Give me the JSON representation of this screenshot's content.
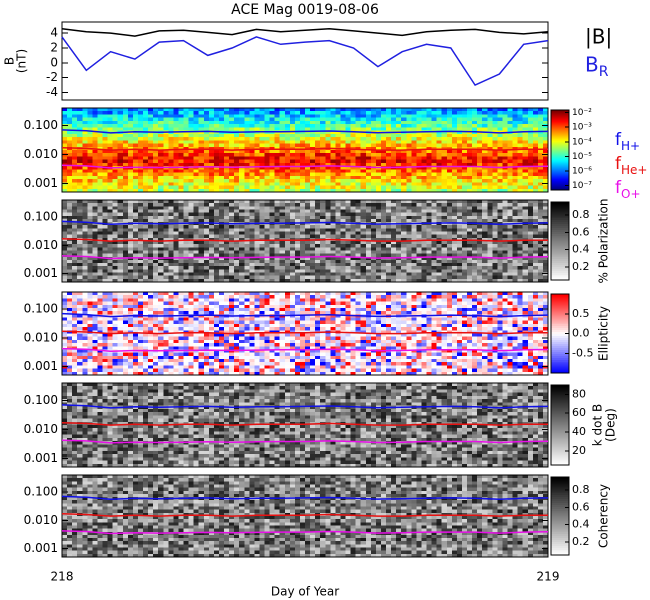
{
  "chart_data": [
    {
      "type": "line",
      "title": "ACE Mag 0019-08-06",
      "ylabel": [
        "B",
        "(nT)"
      ],
      "x": [
        218,
        218.05,
        218.1,
        218.15,
        218.2,
        218.25,
        218.3,
        218.35,
        218.4,
        218.45,
        218.5,
        218.55,
        218.6,
        218.65,
        218.7,
        218.75,
        218.8,
        218.85,
        218.9,
        218.95,
        219
      ],
      "xlim": [
        218,
        219
      ],
      "ylim": [
        -5,
        5.5
      ],
      "yticks": [
        -4,
        -2,
        0,
        2,
        4
      ],
      "series": [
        {
          "name": "|B|",
          "color": "#000000",
          "values": [
            4.6,
            4.2,
            4.0,
            3.6,
            4.3,
            4.4,
            4.1,
            3.8,
            4.5,
            4.2,
            4.4,
            4.6,
            4.3,
            4.0,
            3.7,
            4.2,
            4.4,
            4.5,
            4.1,
            3.9,
            4.2
          ]
        },
        {
          "name": "B",
          "subscript": "R",
          "color": "#2020e0",
          "values": [
            3.5,
            -1.0,
            1.5,
            0.5,
            2.8,
            3.0,
            1.0,
            2.0,
            3.5,
            2.5,
            2.8,
            3.0,
            2.0,
            -0.5,
            1.5,
            2.5,
            2.0,
            -3.0,
            -1.5,
            2.5,
            3.0
          ]
        }
      ]
    },
    {
      "type": "spectrogram",
      "colormap": "jet",
      "log": true,
      "clog": true,
      "x": [
        218,
        218.05,
        218.1,
        218.15,
        218.2,
        218.25,
        218.3,
        218.35,
        218.4,
        218.45,
        218.5,
        218.55,
        218.6,
        218.65,
        218.7,
        218.75,
        218.8,
        218.85,
        218.9,
        218.95,
        219
      ],
      "xlim": [
        218,
        219
      ],
      "ylim": [
        0.0005,
        0.4
      ],
      "yticks": [
        0.001,
        {
          "value": 0.01,
          "label": "0.010"
        },
        {
          "value": 0.1,
          "label": "0.100"
        }
      ],
      "clim": [
        5e-08,
        0.015
      ],
      "cticks": [
        {
          "value": 0.01,
          "label": "10⁻²"
        },
        {
          "value": 0.001,
          "label": "10⁻³"
        },
        {
          "value": 0.0001,
          "label": "10⁻⁴"
        },
        {
          "value": 1e-05,
          "label": "10⁻⁵"
        },
        {
          "value": 1e-06,
          "label": "10⁻⁶"
        },
        {
          "value": 1e-07,
          "label": "10⁻⁷"
        }
      ],
      "series": [
        {
          "name": "f",
          "subscript": "H+",
          "color": "#1010e8",
          "values": [
            0.07,
            0.065,
            0.055,
            0.06,
            0.058,
            0.06,
            0.062,
            0.058,
            0.06,
            0.06,
            0.062,
            0.064,
            0.06,
            0.056,
            0.058,
            0.06,
            0.062,
            0.06,
            0.055,
            0.06,
            0.062
          ]
        },
        {
          "name": "f",
          "subscript": "He+",
          "color": "#e81010",
          "values": [
            0.017,
            0.016,
            0.014,
            0.015,
            0.014,
            0.015,
            0.015,
            0.014,
            0.015,
            0.015,
            0.015,
            0.016,
            0.015,
            0.014,
            0.014,
            0.015,
            0.015,
            0.015,
            0.014,
            0.015,
            0.015
          ]
        },
        {
          "name": "f",
          "subscript": "O+",
          "color": "#e810e8",
          "values": [
            0.0042,
            0.004,
            0.0034,
            0.0036,
            0.0035,
            0.0036,
            0.0037,
            0.0036,
            0.0037,
            0.0038,
            0.0038,
            0.004,
            0.0038,
            0.0035,
            0.0036,
            0.0038,
            0.0038,
            0.0038,
            0.0035,
            0.0038,
            0.0039
          ]
        }
      ]
    },
    {
      "type": "spectrogram",
      "colormap": "gray",
      "log": true,
      "colorbar_label": "% Polarization",
      "x": [
        218,
        218.05,
        218.1,
        218.15,
        218.2,
        218.25,
        218.3,
        218.35,
        218.4,
        218.45,
        218.5,
        218.55,
        218.6,
        218.65,
        218.7,
        218.75,
        218.8,
        218.85,
        218.9,
        218.95,
        219
      ],
      "xlim": [
        218,
        219
      ],
      "ylim": [
        0.0005,
        0.4
      ],
      "yticks": [
        0.001,
        {
          "value": 0.01,
          "label": "0.010"
        },
        {
          "value": 0.1,
          "label": "0.100"
        }
      ],
      "clim": [
        0.05,
        0.95
      ],
      "cticks": [
        0.2,
        0.4,
        0.6,
        0.8
      ],
      "series": [
        {
          "color": "#1010e8",
          "values": [
            0.07,
            0.065,
            0.055,
            0.06,
            0.058,
            0.06,
            0.062,
            0.058,
            0.06,
            0.06,
            0.062,
            0.064,
            0.06,
            0.056,
            0.058,
            0.06,
            0.062,
            0.06,
            0.055,
            0.06,
            0.062
          ]
        },
        {
          "color": "#e81010",
          "values": [
            0.017,
            0.016,
            0.014,
            0.015,
            0.014,
            0.015,
            0.015,
            0.014,
            0.015,
            0.015,
            0.015,
            0.016,
            0.015,
            0.014,
            0.014,
            0.015,
            0.015,
            0.015,
            0.014,
            0.015,
            0.015
          ]
        },
        {
          "color": "#e810e8",
          "values": [
            0.0042,
            0.004,
            0.0034,
            0.0036,
            0.0035,
            0.0036,
            0.0037,
            0.0036,
            0.0037,
            0.0038,
            0.0038,
            0.004,
            0.0038,
            0.0035,
            0.0036,
            0.0038,
            0.0038,
            0.0038,
            0.0035,
            0.0038,
            0.0039
          ]
        }
      ]
    },
    {
      "type": "spectrogram",
      "colormap": "bwr",
      "log": true,
      "colorbar_label": "Ellipticity",
      "x": [
        218,
        218.05,
        218.1,
        218.15,
        218.2,
        218.25,
        218.3,
        218.35,
        218.4,
        218.45,
        218.5,
        218.55,
        218.6,
        218.65,
        218.7,
        218.75,
        218.8,
        218.85,
        218.9,
        218.95,
        219
      ],
      "xlim": [
        218,
        219
      ],
      "ylim": [
        0.0005,
        0.4
      ],
      "yticks": [
        0.001,
        {
          "value": 0.01,
          "label": "0.010"
        },
        {
          "value": 0.1,
          "label": "0.100"
        }
      ],
      "clim": [
        -1,
        1
      ],
      "cticks": [
        -0.5,
        {
          "value": 0,
          "label": "0.0"
        },
        0.5
      ],
      "series": [
        {
          "color": "#1010e8",
          "values": [
            0.07,
            0.065,
            0.055,
            0.06,
            0.058,
            0.06,
            0.062,
            0.058,
            0.06,
            0.06,
            0.062,
            0.064,
            0.06,
            0.056,
            0.058,
            0.06,
            0.062,
            0.06,
            0.055,
            0.06,
            0.062
          ]
        },
        {
          "color": "#e81010",
          "values": [
            0.017,
            0.016,
            0.014,
            0.015,
            0.014,
            0.015,
            0.015,
            0.014,
            0.015,
            0.015,
            0.015,
            0.016,
            0.015,
            0.014,
            0.014,
            0.015,
            0.015,
            0.015,
            0.014,
            0.015,
            0.015
          ]
        },
        {
          "color": "#e810e8",
          "values": [
            0.0042,
            0.004,
            0.0034,
            0.0036,
            0.0035,
            0.0036,
            0.0037,
            0.0036,
            0.0037,
            0.0038,
            0.0038,
            0.004,
            0.0038,
            0.0035,
            0.0036,
            0.0038,
            0.0038,
            0.0038,
            0.0035,
            0.0038,
            0.0039
          ]
        }
      ]
    },
    {
      "type": "spectrogram",
      "colormap": "gray",
      "log": true,
      "colorbar_label": [
        "k dot B",
        "(Deg)"
      ],
      "x": [
        218,
        218.05,
        218.1,
        218.15,
        218.2,
        218.25,
        218.3,
        218.35,
        218.4,
        218.45,
        218.5,
        218.55,
        218.6,
        218.65,
        218.7,
        218.75,
        218.8,
        218.85,
        218.9,
        218.95,
        219
      ],
      "xlim": [
        218,
        219
      ],
      "ylim": [
        0.0005,
        0.4
      ],
      "yticks": [
        0.001,
        {
          "value": 0.01,
          "label": "0.010"
        },
        {
          "value": 0.1,
          "label": "0.100"
        }
      ],
      "clim": [
        5,
        90
      ],
      "cticks": [
        20,
        40,
        60,
        80
      ],
      "series": [
        {
          "color": "#1010e8",
          "values": [
            0.07,
            0.065,
            0.055,
            0.06,
            0.058,
            0.06,
            0.062,
            0.058,
            0.06,
            0.06,
            0.062,
            0.064,
            0.06,
            0.056,
            0.058,
            0.06,
            0.062,
            0.06,
            0.055,
            0.06,
            0.062
          ]
        },
        {
          "color": "#e81010",
          "values": [
            0.017,
            0.016,
            0.014,
            0.015,
            0.014,
            0.015,
            0.015,
            0.014,
            0.015,
            0.015,
            0.015,
            0.016,
            0.015,
            0.014,
            0.014,
            0.015,
            0.015,
            0.015,
            0.014,
            0.015,
            0.015
          ]
        },
        {
          "color": "#e810e8",
          "values": [
            0.0042,
            0.004,
            0.0034,
            0.0036,
            0.0035,
            0.0036,
            0.0037,
            0.0036,
            0.0037,
            0.0038,
            0.0038,
            0.004,
            0.0038,
            0.0035,
            0.0036,
            0.0038,
            0.0038,
            0.0038,
            0.0035,
            0.0038,
            0.0039
          ]
        }
      ]
    },
    {
      "type": "spectrogram",
      "colormap": "gray",
      "log": true,
      "colorbar_label": "Coherency",
      "x": [
        218,
        218.05,
        218.1,
        218.15,
        218.2,
        218.25,
        218.3,
        218.35,
        218.4,
        218.45,
        218.5,
        218.55,
        218.6,
        218.65,
        218.7,
        218.75,
        218.8,
        218.85,
        218.9,
        218.95,
        219
      ],
      "xlim": [
        218,
        219
      ],
      "xticks": [
        218,
        219
      ],
      "xlabel": "Day of Year",
      "ylim": [
        0.0005,
        0.4
      ],
      "yticks": [
        0.001,
        {
          "value": 0.01,
          "label": "0.010"
        },
        {
          "value": 0.1,
          "label": "0.100"
        }
      ],
      "clim": [
        0.05,
        0.95
      ],
      "cticks": [
        0.2,
        0.4,
        0.6,
        0.8
      ],
      "series": [
        {
          "color": "#1010e8",
          "values": [
            0.07,
            0.065,
            0.055,
            0.06,
            0.058,
            0.06,
            0.062,
            0.058,
            0.06,
            0.06,
            0.062,
            0.064,
            0.06,
            0.056,
            0.058,
            0.06,
            0.062,
            0.06,
            0.055,
            0.06,
            0.062
          ]
        },
        {
          "color": "#e81010",
          "values": [
            0.017,
            0.016,
            0.014,
            0.015,
            0.014,
            0.015,
            0.015,
            0.014,
            0.015,
            0.015,
            0.015,
            0.016,
            0.015,
            0.014,
            0.014,
            0.015,
            0.015,
            0.015,
            0.014,
            0.015,
            0.015
          ]
        },
        {
          "color": "#e810e8",
          "values": [
            0.0042,
            0.004,
            0.0034,
            0.0036,
            0.0035,
            0.0036,
            0.0037,
            0.0036,
            0.0037,
            0.0038,
            0.0038,
            0.004,
            0.0038,
            0.0035,
            0.0036,
            0.0038,
            0.0038,
            0.0038,
            0.0035,
            0.0038,
            0.0039
          ]
        }
      ]
    }
  ]
}
